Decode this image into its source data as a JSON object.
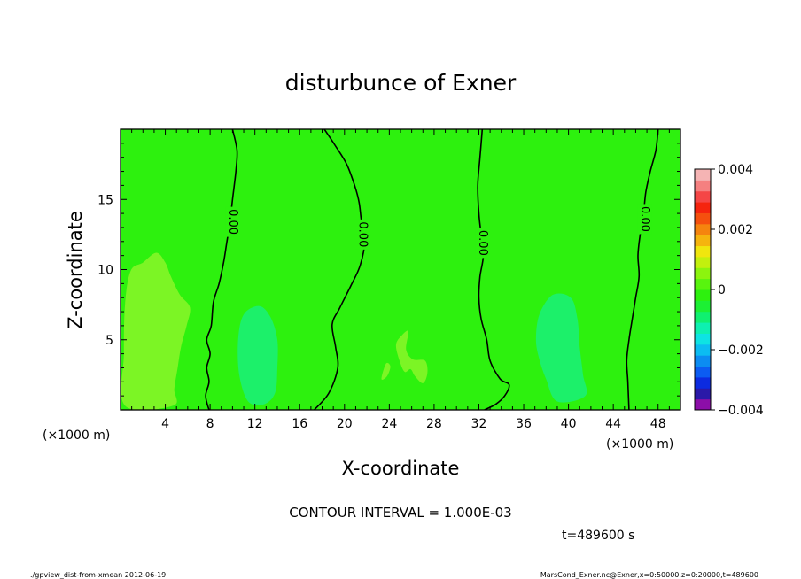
{
  "chart_data": {
    "type": "heatmap",
    "title": "disturbunce of Exner",
    "xlabel": "X-coordinate",
    "ylabel": "Z-coordinate",
    "x_unit_left": "(×1000 m)",
    "x_unit_right": "(×1000 m)",
    "xlim": [
      0,
      50
    ],
    "ylim": [
      0,
      20
    ],
    "x_ticks": [
      "4",
      "8",
      "12",
      "16",
      "20",
      "24",
      "28",
      "32",
      "36",
      "40",
      "44",
      "48"
    ],
    "y_ticks": [
      "5",
      "10",
      "15"
    ],
    "regions": [
      {
        "value": 0.0005,
        "color": "#7cf525",
        "points": [
          [
            0.4,
            0.3
          ],
          [
            0.3,
            4
          ],
          [
            0.4,
            7.5
          ],
          [
            0.9,
            9.9
          ],
          [
            2,
            10.5
          ],
          [
            3.2,
            11.2
          ],
          [
            4,
            10.5
          ],
          [
            4.5,
            9.5
          ],
          [
            5.3,
            8.2
          ],
          [
            6.2,
            7.3
          ],
          [
            5.9,
            6
          ],
          [
            5.4,
            4.5
          ],
          [
            5.1,
            3
          ],
          [
            4.8,
            1.5
          ],
          [
            4.7,
            0.3
          ]
        ]
      },
      {
        "value": -0.0005,
        "color": "#1cf06a",
        "points": [
          [
            11.4,
            0.6
          ],
          [
            10.6,
            2.5
          ],
          [
            10.5,
            5
          ],
          [
            11,
            6.8
          ],
          [
            12.4,
            7.4
          ],
          [
            13.4,
            6.6
          ],
          [
            14,
            5
          ],
          [
            14,
            3
          ],
          [
            13.8,
            1.2
          ],
          [
            12.8,
            0.4
          ]
        ]
      },
      {
        "value": -0.0005,
        "color": "#1cf06a",
        "points": [
          [
            39,
            0.6
          ],
          [
            38,
            2.2
          ],
          [
            37.4,
            3.6
          ],
          [
            37.1,
            5
          ],
          [
            37.4,
            6.8
          ],
          [
            38.6,
            8.2
          ],
          [
            40.2,
            8
          ],
          [
            40.8,
            6.5
          ],
          [
            41,
            4.5
          ],
          [
            41.3,
            2.5
          ],
          [
            41.5,
            1
          ]
        ]
      },
      {
        "value": 0.0005,
        "color": "#7cf525",
        "points": [
          [
            25.7,
            5.6
          ],
          [
            25.5,
            4.3
          ],
          [
            26.1,
            3.6
          ],
          [
            27.2,
            3.5
          ],
          [
            27.4,
            2.6
          ],
          [
            27,
            1.9
          ],
          [
            26.3,
            2.4
          ],
          [
            25.9,
            2.9
          ],
          [
            25.4,
            2.7
          ],
          [
            25,
            3.3
          ],
          [
            24.6,
            4.6
          ],
          [
            25.1,
            5.3
          ]
        ]
      },
      {
        "value": 0.0005,
        "color": "#7cf525",
        "points": [
          [
            23.7,
            3.3
          ],
          [
            23.3,
            2.2
          ],
          [
            23.8,
            2.4
          ],
          [
            24.1,
            3.1
          ]
        ]
      }
    ],
    "background_color": "#2df10e",
    "contours": [
      {
        "value": 0.0,
        "label": "0.00",
        "label_at": [
          10,
          13.4
        ],
        "points": [
          [
            10,
            20
          ],
          [
            10.4,
            18.5
          ],
          [
            10.3,
            17
          ],
          [
            10,
            15
          ],
          [
            9.8,
            13.5
          ],
          [
            9.5,
            12
          ],
          [
            9.2,
            10.5
          ],
          [
            8.8,
            9
          ],
          [
            8.3,
            7.7
          ],
          [
            8.1,
            6
          ],
          [
            7.7,
            5
          ],
          [
            8,
            4
          ],
          [
            7.7,
            3
          ],
          [
            7.9,
            2
          ],
          [
            7.6,
            1
          ],
          [
            7.9,
            0
          ]
        ]
      },
      {
        "value": 0.0,
        "label": "0.00",
        "label_at": [
          21.6,
          12.5
        ],
        "points": [
          [
            18.2,
            20
          ],
          [
            19.2,
            18.8
          ],
          [
            20.2,
            17.5
          ],
          [
            20.9,
            16
          ],
          [
            21.3,
            14.8
          ],
          [
            21.5,
            13.5
          ],
          [
            21.8,
            12
          ],
          [
            21.4,
            10.3
          ],
          [
            20.6,
            8.9
          ],
          [
            19.6,
            7.3
          ],
          [
            18.9,
            6.1
          ],
          [
            19.2,
            4.5
          ],
          [
            19.4,
            3
          ],
          [
            18.6,
            1.2
          ],
          [
            17.3,
            0
          ]
        ]
      },
      {
        "value": 0.0,
        "label": "0.00",
        "label_at": [
          32.3,
          11.9
        ],
        "points": [
          [
            32.3,
            20
          ],
          [
            32.1,
            18
          ],
          [
            31.9,
            16
          ],
          [
            32,
            14
          ],
          [
            32.2,
            12.5
          ],
          [
            32.4,
            11
          ],
          [
            32.1,
            9.5
          ],
          [
            32,
            8
          ],
          [
            32.2,
            6.5
          ],
          [
            32.7,
            5
          ],
          [
            33,
            3.5
          ],
          [
            33.9,
            2.2
          ],
          [
            34.7,
            1.8
          ],
          [
            34.3,
            1
          ],
          [
            33.5,
            0.4
          ],
          [
            32.5,
            0
          ]
        ]
      },
      {
        "value": 0.0,
        "label": "0.00",
        "label_at": [
          46.8,
          13.6
        ],
        "points": [
          [
            48,
            20
          ],
          [
            47.8,
            18.5
          ],
          [
            47.3,
            17
          ],
          [
            46.9,
            15.5
          ],
          [
            46.7,
            14
          ],
          [
            46.4,
            12.5
          ],
          [
            46.2,
            11
          ],
          [
            46.3,
            9.5
          ],
          [
            46,
            8
          ],
          [
            45.7,
            6.5
          ],
          [
            45.4,
            5
          ],
          [
            45.2,
            3.5
          ],
          [
            45.3,
            2
          ],
          [
            45.4,
            0
          ]
        ]
      }
    ],
    "colorbar": {
      "vmin": -0.004,
      "vmax": 0.004,
      "tick_labels": [
        "0.004",
        "0.002",
        "0",
        "−0.002",
        "−0.004"
      ],
      "tick_values": [
        0.004,
        0.002,
        0,
        -0.002,
        -0.004
      ],
      "colors_bottom_to_top": [
        "#8c0ea8",
        "#2a19a8",
        "#0c2be0",
        "#0c5cf2",
        "#0c8cf2",
        "#0cbcf2",
        "#0ee3e3",
        "#0ef0b0",
        "#10f070",
        "#1cf034",
        "#2df10e",
        "#58f40e",
        "#8cf40e",
        "#c3f00e",
        "#f0e60e",
        "#f5b40e",
        "#f5840e",
        "#f5500e",
        "#f5240e",
        "#f54646",
        "#f58080",
        "#f5b4b4"
      ]
    },
    "annotations": {
      "contour_interval": "CONTOUR INTERVAL = 1.000E-03",
      "time": "t=489600 s",
      "footer_left": "./gpview_dist-from-xmean  2012-06-19",
      "footer_right": "MarsCond_Exner.nc@Exner,x=0:50000,z=0:20000,t=489600"
    }
  }
}
